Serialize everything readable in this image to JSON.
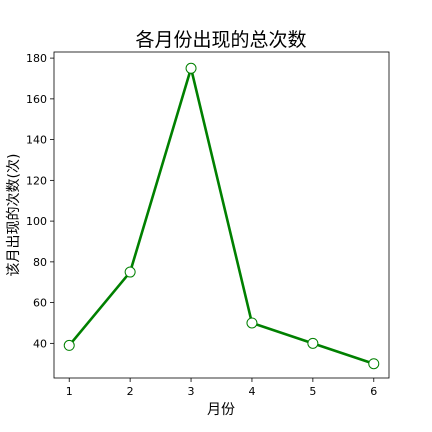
{
  "chart_data": {
    "type": "line",
    "title": "各月份出现的总次数",
    "xlabel": "月份",
    "ylabel": "该月出现的次数(次)",
    "x": [
      1,
      2,
      3,
      4,
      5,
      6
    ],
    "series": [
      {
        "values": [
          39,
          75,
          175,
          50,
          40,
          30
        ]
      }
    ],
    "xlim": [
      0.75,
      6.25
    ],
    "ylim": [
      23,
      183
    ],
    "xticks": [
      1,
      2,
      3,
      4,
      5,
      6
    ],
    "yticks": [
      40,
      60,
      80,
      100,
      120,
      140,
      160,
      180
    ],
    "grid": false,
    "line_color": "#008000",
    "marker_fill": "#ffffff",
    "marker_edge": "#008000"
  }
}
